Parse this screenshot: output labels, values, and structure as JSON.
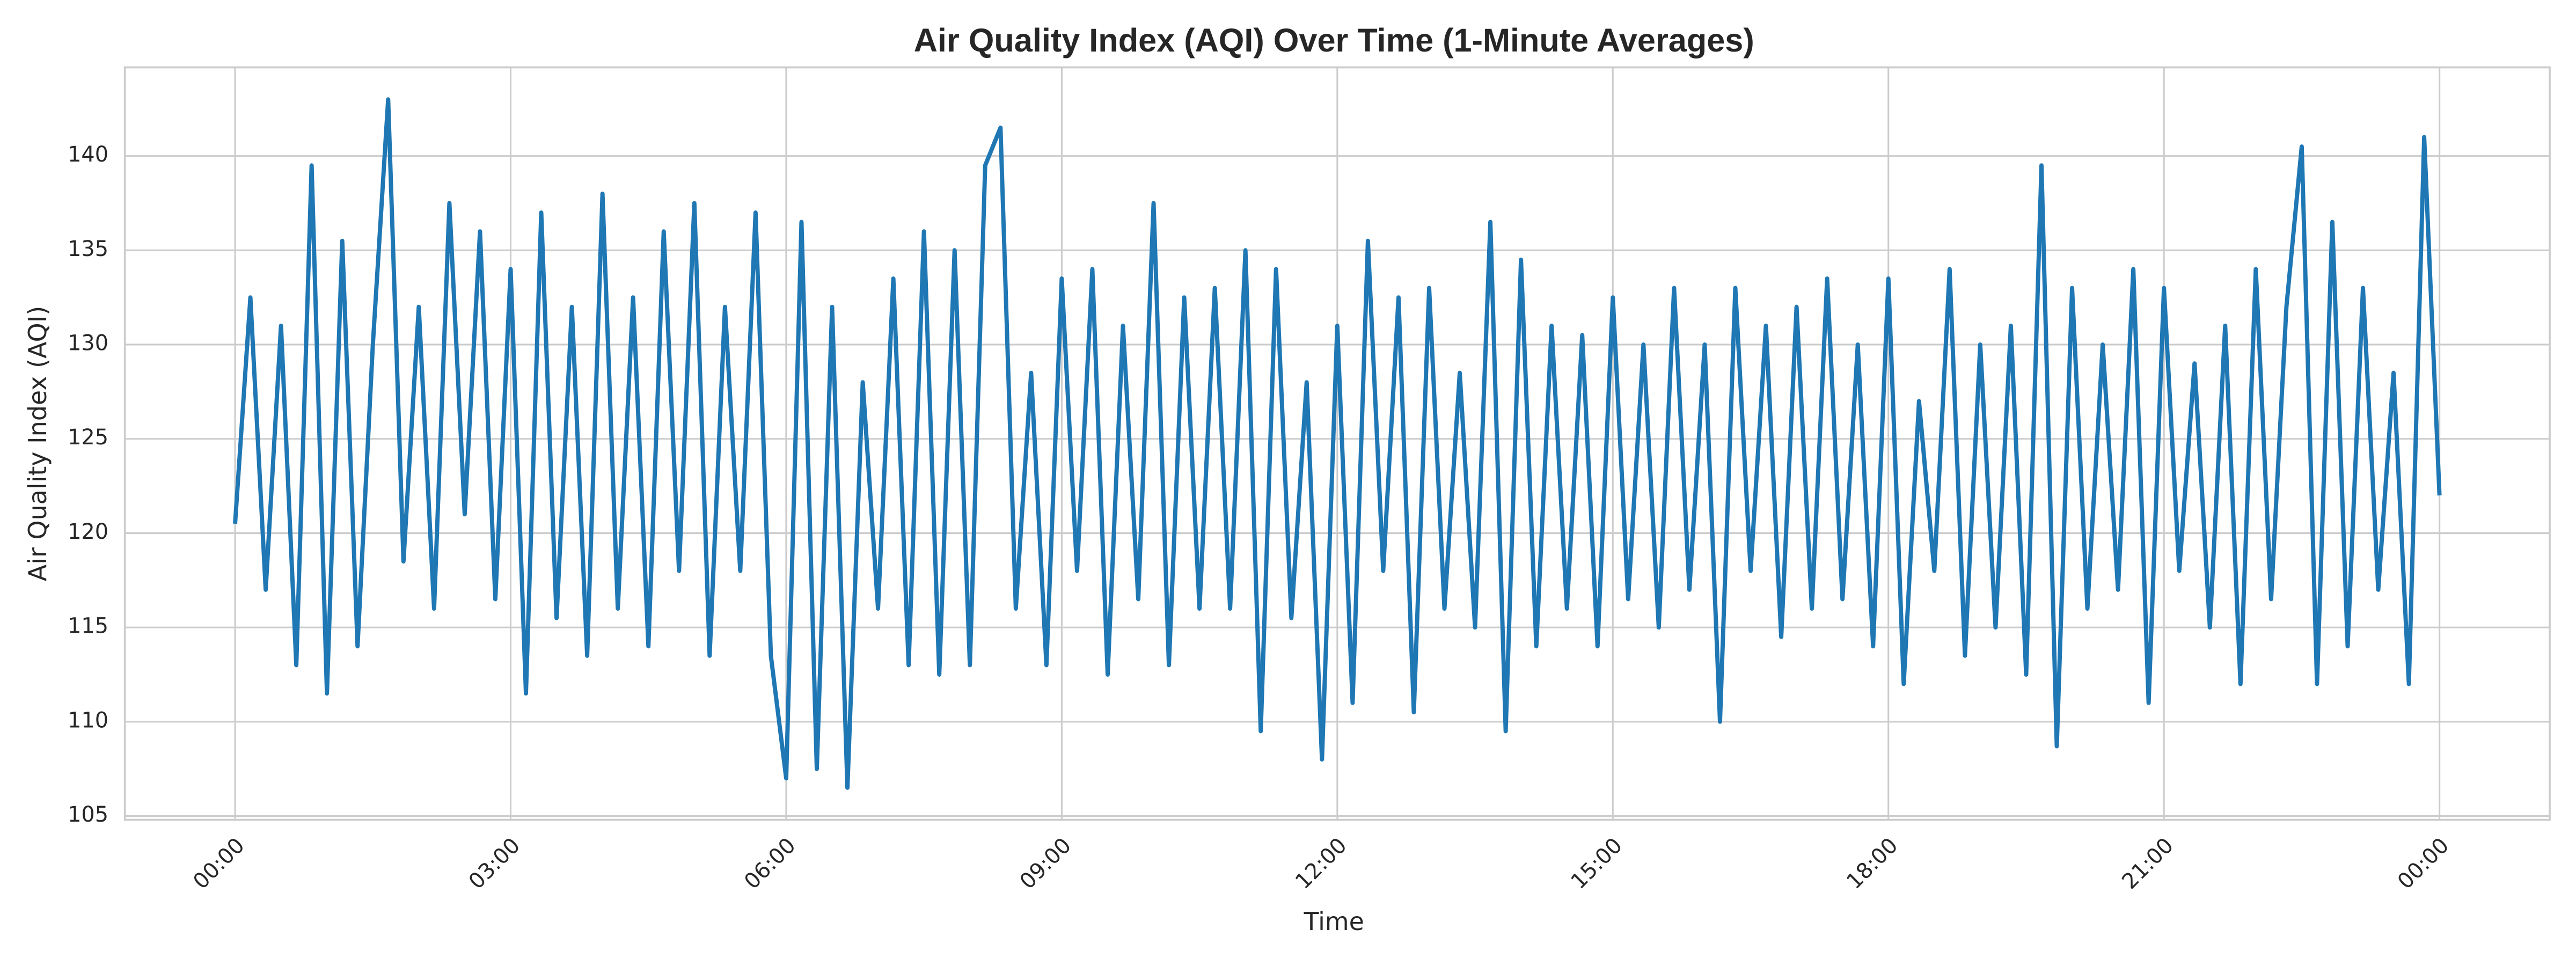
{
  "chart_data": {
    "type": "line",
    "title": "Air Quality Index (AQI) Over Time (1-Minute Averages)",
    "x_label": "Time",
    "y_label": "Air Quality Index (AQI)",
    "color": "#1f77b4",
    "grid": true,
    "x": [
      0,
      10,
      20,
      30,
      40,
      50,
      60,
      70,
      80,
      90,
      100,
      110,
      120,
      130,
      140,
      150,
      160,
      170,
      180,
      190,
      200,
      210,
      220,
      230,
      240,
      250,
      260,
      270,
      280,
      290,
      300,
      310,
      320,
      330,
      340,
      350,
      360,
      370,
      380,
      390,
      400,
      410,
      420,
      430,
      440,
      450,
      460,
      470,
      480,
      490,
      500,
      510,
      520,
      530,
      540,
      550,
      560,
      570,
      580,
      590,
      600,
      610,
      620,
      630,
      640,
      650,
      660,
      670,
      680,
      690,
      700,
      710,
      720,
      730,
      740,
      750,
      760,
      770,
      780,
      790,
      800,
      810,
      820,
      830,
      840,
      850,
      860,
      870,
      880,
      890,
      900,
      910,
      920,
      930,
      940,
      950,
      960,
      970,
      980,
      990,
      1000,
      1010,
      1020,
      1030,
      1040,
      1050,
      1060,
      1070,
      1080,
      1090,
      1100,
      1110,
      1120,
      1130,
      1140,
      1150,
      1160,
      1170,
      1180,
      1190,
      1200,
      1210,
      1220,
      1230,
      1240,
      1250,
      1260,
      1270,
      1280,
      1290,
      1300,
      1310,
      1320,
      1330,
      1340,
      1350,
      1360,
      1370,
      1380,
      1390,
      1400,
      1410,
      1420,
      1430,
      1440
    ],
    "values": [
      120.5,
      132.5,
      117,
      131,
      113,
      139.5,
      111.5,
      135.5,
      114,
      130,
      143,
      118.5,
      132,
      116,
      137.5,
      121,
      136,
      116.5,
      134,
      111.5,
      137,
      115.5,
      132,
      113.5,
      138,
      116,
      132.5,
      114,
      136,
      118,
      137.5,
      113.5,
      132,
      118,
      137,
      113.5,
      107,
      136.5,
      107.5,
      132,
      106.5,
      128,
      116,
      133.5,
      113,
      136,
      112.5,
      135,
      113,
      139.5,
      141.5,
      116,
      128.5,
      113,
      133.5,
      118,
      134,
      112.5,
      131,
      116.5,
      137.5,
      113,
      132.5,
      116,
      133,
      116,
      135,
      109.5,
      134,
      115.5,
      128,
      108,
      131,
      111,
      135.5,
      118,
      132.5,
      110.5,
      133,
      116,
      128.5,
      115,
      136.5,
      109.5,
      134.5,
      114,
      131,
      116,
      130.5,
      114,
      132.5,
      116.5,
      130,
      115,
      133,
      117,
      130,
      110,
      133,
      118,
      131,
      114.5,
      132,
      116,
      133.5,
      116.5,
      130,
      114,
      133.5,
      112,
      127,
      118,
      134,
      113.5,
      130,
      115,
      131,
      112.5,
      139.5,
      108.7,
      133,
      116,
      130,
      117,
      134,
      111,
      133,
      118,
      129,
      115,
      131,
      112,
      134,
      116.5,
      132,
      140.5,
      112,
      136.5,
      114,
      133,
      117,
      128.5,
      112,
      141,
      122
    ],
    "xlim": [
      -72,
      1512
    ],
    "ylim": [
      104.8,
      144.7
    ],
    "xticks": [
      {
        "value": 0,
        "label": "00:00"
      },
      {
        "value": 180,
        "label": "03:00"
      },
      {
        "value": 360,
        "label": "06:00"
      },
      {
        "value": 540,
        "label": "09:00"
      },
      {
        "value": 720,
        "label": "12:00"
      },
      {
        "value": 900,
        "label": "15:00"
      },
      {
        "value": 1080,
        "label": "18:00"
      },
      {
        "value": 1260,
        "label": "21:00"
      },
      {
        "value": 1440,
        "label": "00:00"
      }
    ],
    "yticks": [
      105,
      110,
      115,
      120,
      125,
      130,
      135,
      140
    ]
  }
}
